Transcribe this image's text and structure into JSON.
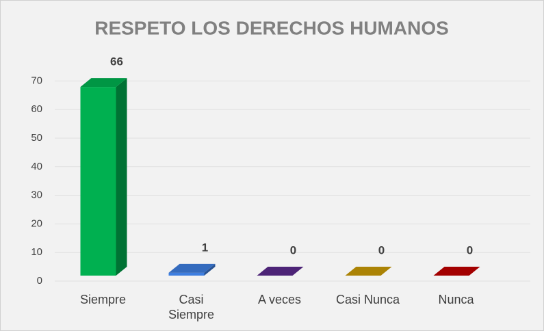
{
  "chart_data": {
    "type": "bar3d",
    "title": "RESPETO LOS DERECHOS HUMANOS",
    "categories": [
      "Siempre",
      "Casi Siempre",
      "A veces",
      "Casi Nunca",
      "Nunca"
    ],
    "values": [
      66,
      1,
      0,
      0,
      0
    ],
    "colors": [
      "#00b050",
      "#3d7ee0",
      "#5b2a8c",
      "#c99a06",
      "#c00000"
    ],
    "ylim": [
      0,
      70
    ],
    "yticks": [
      0,
      10,
      20,
      30,
      40,
      50,
      60,
      70
    ],
    "grid": true
  }
}
